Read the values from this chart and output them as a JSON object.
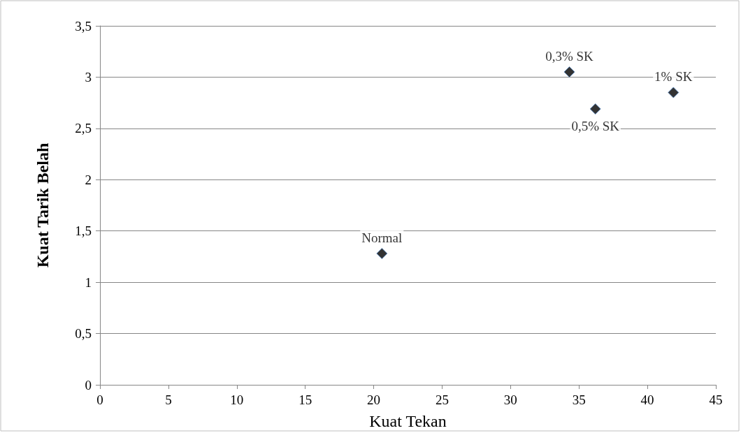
{
  "chart_data": {
    "type": "scatter",
    "xlabel": "Kuat Tekan",
    "ylabel": "Kuat Tarik Belah",
    "x": [
      20.6,
      34.3,
      36.2,
      41.9
    ],
    "series": [
      {
        "color": "#000000",
        "values": [
          1.28,
          3.05,
          2.69,
          2.85
        ]
      }
    ],
    "annotations": [
      {
        "text": "Normal",
        "x": 20.6,
        "y": 1.28
      },
      {
        "text": "0,3% SK",
        "x": 34.3,
        "y": 3.05
      },
      {
        "text": "0,5% SK",
        "x": 36.2,
        "y": 2.69
      },
      {
        "text": "1% SK",
        "x": 41.9,
        "y": 2.85
      }
    ],
    "xlim": [
      0,
      45
    ],
    "xticks": [
      0,
      5,
      10,
      15,
      20,
      25,
      30,
      35,
      40,
      45
    ],
    "ylim": [
      0,
      3.5
    ],
    "yticks": [
      0,
      {
        "value": 0.5,
        "label": "0,5"
      },
      1,
      {
        "value": 1.5,
        "label": "1,5"
      },
      2,
      {
        "value": 2.5,
        "label": "2,5"
      },
      3,
      {
        "value": 3.5,
        "label": "3,5"
      }
    ],
    "grid": "y",
    "marker": "diamond"
  }
}
